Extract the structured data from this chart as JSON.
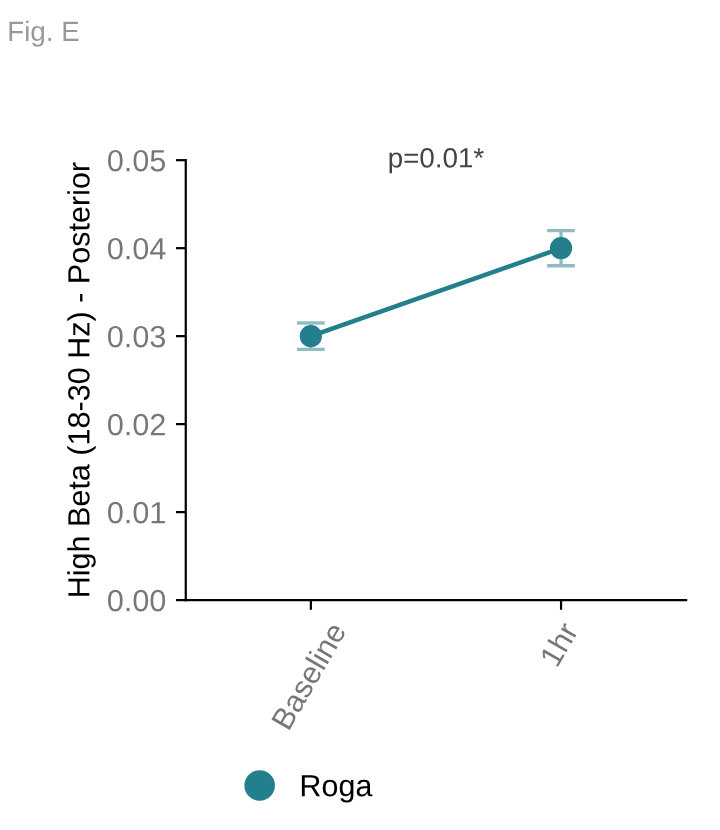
{
  "chart_data": {
    "type": "line",
    "ylabel": "High Beta (18-30 Hz) - Posterior",
    "categories": [
      "Baseline",
      "1hr"
    ],
    "series": [
      {
        "name": "Roga",
        "color": "#237f8c",
        "values": [
          0.03,
          0.04
        ],
        "errors": [
          0.0015,
          0.002
        ]
      }
    ],
    "ylim": [
      0,
      0.05
    ],
    "yticks": [
      {
        "value": 0,
        "label": "0.00"
      },
      {
        "value": 0.01,
        "label": "0.01"
      },
      {
        "value": 0.02,
        "label": "0.02"
      },
      {
        "value": 0.03,
        "label": "0.03"
      },
      {
        "value": 0.04,
        "label": "0.04"
      },
      {
        "value": 0.05,
        "label": "0.05"
      }
    ],
    "annotations": [
      "Fig. E",
      "p=0.01*"
    ],
    "grid": false,
    "legend": "bottom",
    "marker": "circle",
    "line_style": "solid"
  }
}
